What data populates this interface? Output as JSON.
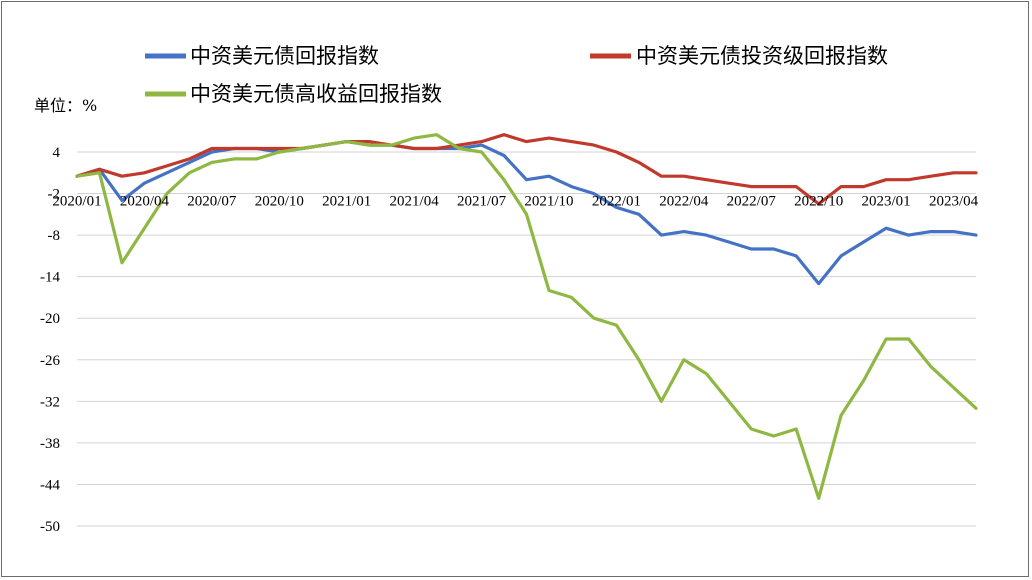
{
  "chart_data": {
    "type": "line",
    "unit_label": "单位：%",
    "ylim": [
      -50,
      4
    ],
    "yticks": [
      4,
      -2,
      -8,
      -14,
      -20,
      -26,
      -32,
      -38,
      -44,
      -50
    ],
    "x_tick_labels": [
      "2020/01",
      "2020/04",
      "2020/07",
      "2020/10",
      "2021/01",
      "2021/04",
      "2021/07",
      "2021/10",
      "2022/01",
      "2022/04",
      "2022/07",
      "2022/10",
      "2023/01",
      "2023/04"
    ],
    "x_months": [
      "2020-01",
      "2020-02",
      "2020-03",
      "2020-04",
      "2020-05",
      "2020-06",
      "2020-07",
      "2020-08",
      "2020-09",
      "2020-10",
      "2020-11",
      "2020-12",
      "2021-01",
      "2021-02",
      "2021-03",
      "2021-04",
      "2021-05",
      "2021-06",
      "2021-07",
      "2021-08",
      "2021-09",
      "2021-10",
      "2021-11",
      "2021-12",
      "2022-01",
      "2022-02",
      "2022-03",
      "2022-04",
      "2022-05",
      "2022-06",
      "2022-07",
      "2022-08",
      "2022-09",
      "2022-10",
      "2022-11",
      "2022-12",
      "2023-01",
      "2023-02",
      "2023-03",
      "2023-04",
      "2023-05"
    ],
    "grid": true,
    "legend_position": "top",
    "series": [
      {
        "name": "中资美元债回报指数",
        "color": "#4472c4",
        "values": [
          0.5,
          1.5,
          -3,
          -0.5,
          1,
          2.5,
          4,
          4.5,
          4.5,
          4,
          4.5,
          5,
          5.5,
          5,
          5,
          4.5,
          4.5,
          4.5,
          5,
          3.5,
          0,
          0.5,
          -1,
          -2,
          -4,
          -5,
          -8,
          -7.5,
          -8,
          -9,
          -10,
          -10,
          -11,
          -15,
          -11,
          -9,
          -7,
          -8,
          -7.5,
          -7.5,
          -8
        ]
      },
      {
        "name": "中资美元债投资级回报指数",
        "color": "#c0392b",
        "values": [
          0.5,
          1.5,
          0.5,
          1,
          2,
          3,
          4.5,
          4.5,
          4.5,
          4.5,
          4.5,
          5,
          5.5,
          5.5,
          5,
          4.5,
          4.5,
          5,
          5.5,
          6.5,
          5.5,
          6,
          5.5,
          5,
          4,
          2.5,
          0.5,
          0.5,
          0,
          -0.5,
          -1,
          -1,
          -1,
          -3.5,
          -1,
          -1,
          0,
          0,
          0.5,
          1,
          1
        ]
      },
      {
        "name": "中资美元债高收益回报指数",
        "color": "#8fb843",
        "values": [
          0.5,
          1,
          -12,
          -7,
          -2,
          1,
          2.5,
          3,
          3,
          4,
          4.5,
          5,
          5.5,
          5,
          5,
          6,
          6.5,
          4.5,
          4,
          0,
          -5,
          -16,
          -17,
          -20,
          -21,
          -26,
          -32,
          -26,
          -28,
          -32,
          -36,
          -37,
          -36,
          -46,
          -34,
          -29,
          -23,
          -23,
          -27,
          -30,
          -33
        ]
      }
    ]
  }
}
